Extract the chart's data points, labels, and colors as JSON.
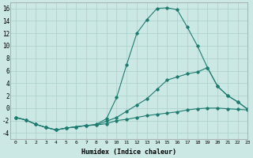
{
  "xlabel": "Humidex (Indice chaleur)",
  "bg_color": "#cce8e4",
  "line_color": "#1e7b70",
  "grid_color": "#aacfca",
  "x_data": [
    0,
    1,
    2,
    3,
    4,
    5,
    6,
    7,
    8,
    9,
    10,
    11,
    12,
    13,
    14,
    15,
    16,
    17,
    18,
    19,
    20,
    21,
    22,
    23
  ],
  "line1": [
    -1.5,
    -1.9,
    -2.6,
    -3.1,
    -3.5,
    -3.2,
    -3.0,
    -2.8,
    -2.7,
    -2.5,
    -2.0,
    -1.8,
    -1.5,
    -1.2,
    -1.0,
    -0.8,
    -0.6,
    -0.3,
    -0.1,
    0.0,
    0.0,
    -0.1,
    -0.2,
    -0.3
  ],
  "line2": [
    -1.5,
    -1.9,
    -2.6,
    -3.1,
    -3.5,
    -3.2,
    -3.0,
    -2.8,
    -2.7,
    -2.1,
    -1.5,
    -0.5,
    0.5,
    1.5,
    3.0,
    4.5,
    5.0,
    5.5,
    5.8,
    6.5,
    3.5,
    2.0,
    1.0,
    -0.2
  ],
  "line3": [
    -1.5,
    -1.9,
    -2.6,
    -3.1,
    -3.5,
    -3.2,
    -3.0,
    -2.8,
    -2.6,
    -1.7,
    1.7,
    7.0,
    12.0,
    14.2,
    16.0,
    16.1,
    15.8,
    13.0,
    10.0,
    6.5,
    3.5,
    2.0,
    1.0,
    -0.2
  ],
  "ylim": [
    -5,
    17
  ],
  "xlim": [
    -0.5,
    23
  ],
  "yticks": [
    -4,
    -2,
    0,
    2,
    4,
    6,
    8,
    10,
    12,
    14,
    16
  ],
  "xticks": [
    0,
    1,
    2,
    3,
    4,
    5,
    6,
    7,
    8,
    9,
    10,
    11,
    12,
    13,
    14,
    15,
    16,
    17,
    18,
    19,
    20,
    21,
    22,
    23
  ]
}
